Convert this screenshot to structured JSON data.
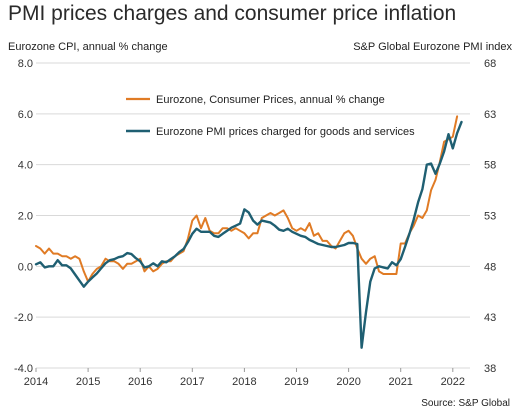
{
  "title": "PMI prices charges and consumer price inflation",
  "left_axis_title": "Eurozone CPI, annual % change",
  "right_axis_title": "S&P Global Eurozone PMI index",
  "source": "Source: S&P Global",
  "colors": {
    "cpi": "#e07b25",
    "pmi": "#1f5f72",
    "grid": "#d9d9d9"
  },
  "chart_data": {
    "type": "line",
    "x_ticks": [
      "2014",
      "2015",
      "2016",
      "2017",
      "2018",
      "2019",
      "2020",
      "2021",
      "2022"
    ],
    "xlim": [
      2014.0,
      2022.33
    ],
    "y_left": {
      "label": "Eurozone CPI, annual % change",
      "range": [
        -4.0,
        8.0
      ],
      "ticks": [
        "-4.0",
        "-2.0",
        "0.0",
        "2.0",
        "4.0",
        "6.0",
        "8.0"
      ]
    },
    "y_right": {
      "label": "S&P Global Eurozone PMI index",
      "range": [
        38,
        68
      ],
      "ticks": [
        "38",
        "43",
        "48",
        "53",
        "58",
        "63",
        "68"
      ]
    },
    "grid": "horizontal",
    "legend_position": "top-center",
    "series": [
      {
        "name": "Eurozone, Consumer Prices, annual % change",
        "axis": "left",
        "x": [
          2014.0,
          2014.083,
          2014.167,
          2014.25,
          2014.333,
          2014.417,
          2014.5,
          2014.583,
          2014.667,
          2014.75,
          2014.833,
          2014.917,
          2015.0,
          2015.083,
          2015.167,
          2015.25,
          2015.333,
          2015.417,
          2015.5,
          2015.583,
          2015.667,
          2015.75,
          2015.833,
          2015.917,
          2016.0,
          2016.083,
          2016.167,
          2016.25,
          2016.333,
          2016.417,
          2016.5,
          2016.583,
          2016.667,
          2016.75,
          2016.833,
          2016.917,
          2017.0,
          2017.083,
          2017.167,
          2017.25,
          2017.333,
          2017.417,
          2017.5,
          2017.583,
          2017.667,
          2017.75,
          2017.833,
          2017.917,
          2018.0,
          2018.083,
          2018.167,
          2018.25,
          2018.333,
          2018.417,
          2018.5,
          2018.583,
          2018.667,
          2018.75,
          2018.833,
          2018.917,
          2019.0,
          2019.083,
          2019.167,
          2019.25,
          2019.333,
          2019.417,
          2019.5,
          2019.583,
          2019.667,
          2019.75,
          2019.833,
          2019.917,
          2020.0,
          2020.083,
          2020.167,
          2020.25,
          2020.333,
          2020.417,
          2020.5,
          2020.583,
          2020.667,
          2020.75,
          2020.833,
          2020.917,
          2021.0,
          2021.083,
          2021.167,
          2021.25,
          2021.333,
          2021.417,
          2021.5,
          2021.583,
          2021.667,
          2021.75,
          2021.833,
          2021.917,
          2022.0,
          2022.083
        ],
        "values": [
          0.8,
          0.7,
          0.5,
          0.7,
          0.5,
          0.5,
          0.4,
          0.4,
          0.3,
          0.4,
          0.3,
          -0.2,
          -0.6,
          -0.3,
          -0.1,
          0.0,
          0.3,
          0.2,
          0.2,
          0.1,
          -0.1,
          0.1,
          0.1,
          0.2,
          0.3,
          -0.2,
          0.0,
          -0.2,
          -0.1,
          0.1,
          0.2,
          0.2,
          0.4,
          0.5,
          0.6,
          1.1,
          1.8,
          2.0,
          1.5,
          1.9,
          1.4,
          1.3,
          1.3,
          1.5,
          1.5,
          1.4,
          1.5,
          1.4,
          1.3,
          1.1,
          1.3,
          1.3,
          1.9,
          2.0,
          2.1,
          2.0,
          2.1,
          2.2,
          1.9,
          1.5,
          1.4,
          1.5,
          1.4,
          1.7,
          1.2,
          1.3,
          1.0,
          1.0,
          0.8,
          0.7,
          1.0,
          1.3,
          1.4,
          1.2,
          0.7,
          0.3,
          0.1,
          0.3,
          0.4,
          -0.2,
          -0.3,
          -0.3,
          -0.3,
          -0.3,
          0.9,
          0.9,
          1.3,
          1.6,
          2.0,
          1.9,
          2.2,
          3.0,
          3.4,
          4.1,
          4.9,
          5.0,
          5.1,
          5.9
        ]
      },
      {
        "name": "Eurozone PMI prices charged for goods and services",
        "axis": "right",
        "x": [
          2014.0,
          2014.083,
          2014.167,
          2014.25,
          2014.333,
          2014.417,
          2014.5,
          2014.583,
          2014.667,
          2014.75,
          2014.833,
          2014.917,
          2015.0,
          2015.083,
          2015.167,
          2015.25,
          2015.333,
          2015.417,
          2015.5,
          2015.583,
          2015.667,
          2015.75,
          2015.833,
          2015.917,
          2016.0,
          2016.083,
          2016.167,
          2016.25,
          2016.333,
          2016.417,
          2016.5,
          2016.583,
          2016.667,
          2016.75,
          2016.833,
          2016.917,
          2017.0,
          2017.083,
          2017.167,
          2017.25,
          2017.333,
          2017.417,
          2017.5,
          2017.583,
          2017.667,
          2017.75,
          2017.833,
          2017.917,
          2018.0,
          2018.083,
          2018.167,
          2018.25,
          2018.333,
          2018.417,
          2018.5,
          2018.583,
          2018.667,
          2018.75,
          2018.833,
          2018.917,
          2019.0,
          2019.083,
          2019.167,
          2019.25,
          2019.333,
          2019.417,
          2019.5,
          2019.583,
          2019.667,
          2019.75,
          2019.833,
          2019.917,
          2020.0,
          2020.083,
          2020.167,
          2020.25,
          2020.333,
          2020.417,
          2020.5,
          2020.583,
          2020.667,
          2020.75,
          2020.833,
          2020.917,
          2021.0,
          2021.083,
          2021.167,
          2021.25,
          2021.333,
          2021.417,
          2021.5,
          2021.583,
          2021.667,
          2021.75,
          2021.833,
          2021.917,
          2022.0,
          2022.083,
          2022.167
        ],
        "values": [
          48.2,
          48.4,
          47.9,
          48.0,
          48.0,
          48.6,
          48.1,
          48.1,
          47.8,
          47.2,
          46.6,
          46.0,
          46.5,
          46.9,
          47.3,
          47.8,
          48.3,
          48.6,
          48.7,
          48.9,
          49.0,
          49.3,
          49.2,
          48.8,
          48.5,
          47.9,
          48.0,
          48.3,
          48.0,
          48.5,
          48.4,
          48.7,
          49.0,
          49.4,
          49.7,
          50.4,
          51.2,
          51.7,
          51.4,
          51.4,
          51.4,
          51.0,
          50.9,
          51.2,
          51.5,
          51.8,
          52.0,
          52.2,
          53.6,
          53.3,
          52.5,
          52.1,
          52.5,
          52.4,
          52.3,
          52.0,
          51.6,
          51.5,
          51.7,
          51.4,
          51.2,
          51.0,
          50.9,
          50.6,
          50.4,
          50.2,
          50.1,
          50.0,
          49.9,
          49.9,
          50.0,
          50.1,
          50.3,
          50.3,
          50.2,
          40.0,
          43.5,
          46.5,
          47.8,
          48.0,
          47.9,
          47.8,
          48.4,
          48.1,
          48.7,
          49.9,
          51.2,
          52.6,
          54.3,
          55.6,
          58.0,
          58.1,
          57.1,
          58.1,
          59.3,
          61.0,
          59.6,
          61.1,
          62.2
        ]
      }
    ]
  }
}
